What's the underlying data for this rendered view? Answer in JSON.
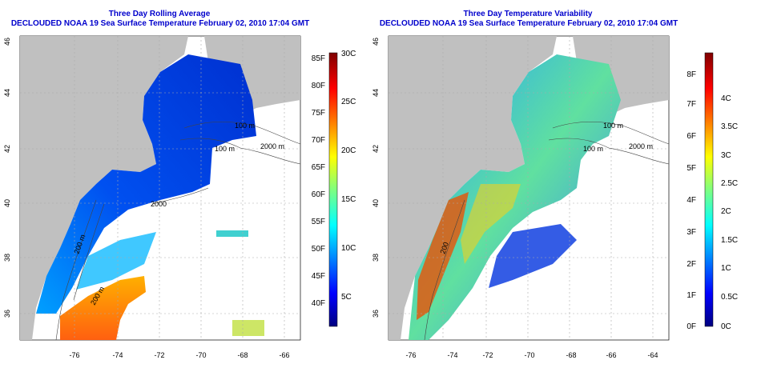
{
  "left": {
    "title": "Three Day Rolling Average",
    "subtitle": "DECLOUDED NOAA 19 Sea Surface Temperature February 02, 2010 17:04 GMT",
    "colorbar_f": [
      "85F",
      "80F",
      "75F",
      "70F",
      "65F",
      "60F",
      "55F",
      "50F",
      "45F",
      "40F"
    ],
    "colorbar_c": [
      "30C",
      "25C",
      "20C",
      "15C",
      "10C",
      "5C"
    ],
    "contours": [
      "100 m",
      "100 m",
      "2000 m",
      "2000",
      "200 m",
      "200 m"
    ]
  },
  "right": {
    "title": "Three Day Temperature Variability",
    "subtitle": "DECLOUDED NOAA 19 Sea Surface Temperature February 02, 2010 17:04 GMT",
    "colorbar_f": [
      "8F",
      "7F",
      "6F",
      "5F",
      "4F",
      "3F",
      "2F",
      "1F",
      "0F"
    ],
    "colorbar_c": [
      "4C",
      "3.5C",
      "3C",
      "2.5C",
      "2C",
      "1.5C",
      "1C",
      "0.5C",
      "0C"
    ],
    "contours": [
      "100 m",
      "100 m",
      "2000 m",
      "200"
    ]
  },
  "axes": {
    "x_ticks": [
      "-76",
      "-74",
      "-72",
      "-70",
      "-68",
      "-66",
      "-64"
    ],
    "y_ticks": [
      "46",
      "44",
      "42",
      "40",
      "38",
      "36"
    ]
  },
  "colors": {
    "land": "#c0c0c0",
    "title": "#0000cc"
  }
}
